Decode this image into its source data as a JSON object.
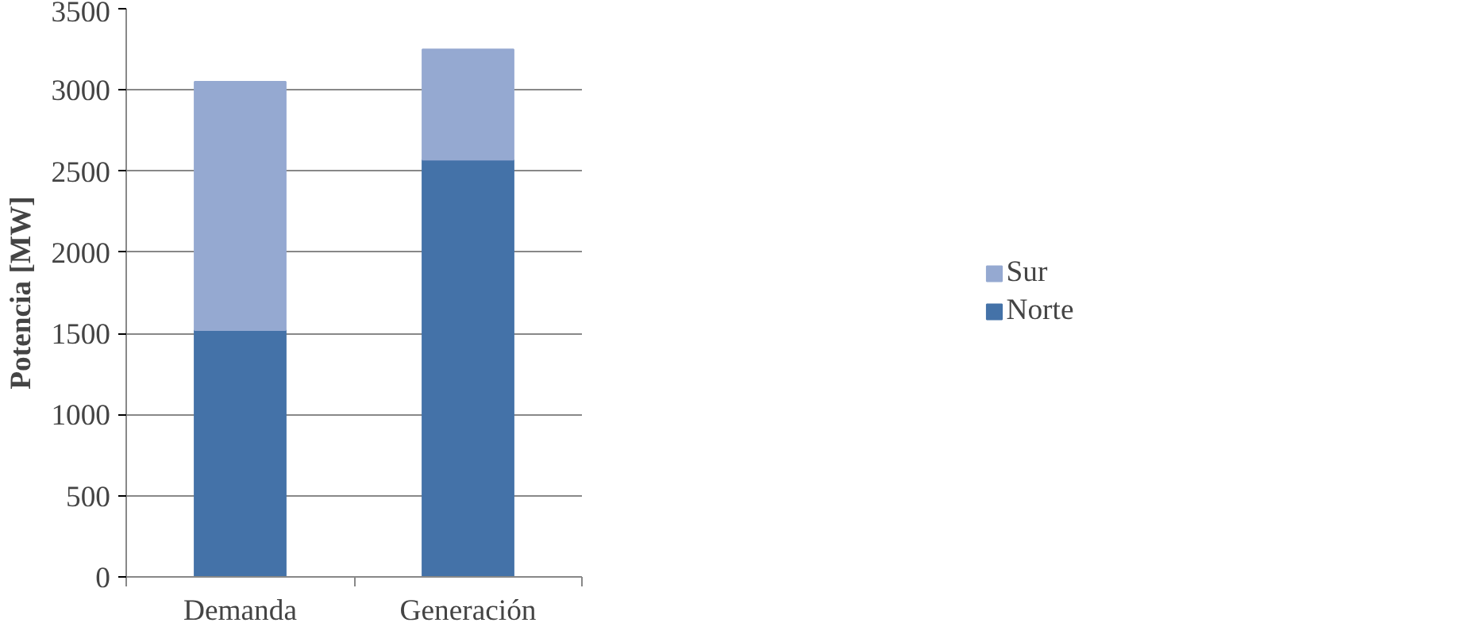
{
  "chart_data": {
    "type": "bar",
    "stacked": true,
    "ylabel": "Potencia [MW]",
    "categories": [
      "Demanda",
      "Generación"
    ],
    "series": [
      {
        "name": "Norte",
        "color": "#4472a8",
        "values": [
          1520,
          2570
        ]
      },
      {
        "name": "Sur",
        "color": "#95a9d1",
        "values": [
          1530,
          680
        ]
      }
    ],
    "ylim": [
      0,
      3500
    ],
    "yticks": [
      0,
      500,
      1000,
      1500,
      2000,
      2500,
      3000,
      3500
    ],
    "grid": "y",
    "legend": "right"
  }
}
